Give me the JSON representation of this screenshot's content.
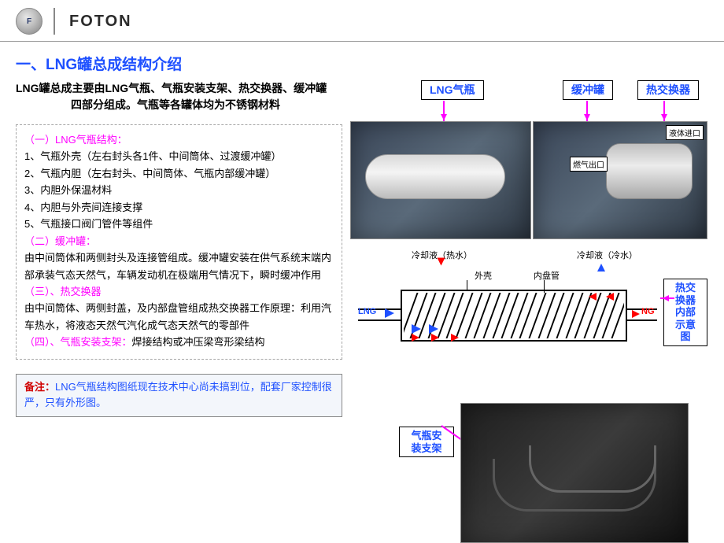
{
  "header": {
    "logo_glyph": "F",
    "brand": "FOTON"
  },
  "title": "一、LNG罐总成结构介绍",
  "intro": {
    "line1": "LNG罐总成主要由LNG气瓶、气瓶安装支架、热交换器、缓冲罐",
    "line2": "四部分组成。气瓶等各罐体均为不锈钢材料"
  },
  "sections": {
    "s1_head": "（一）LNG气瓶结构：",
    "s1_l1": "1、气瓶外壳（左右封头各1件、中间筒体、过渡缓冲罐）",
    "s1_l2": "2、气瓶内胆（左右封头、中间筒体、气瓶内部缓冲罐）",
    "s1_l3": "3、内胆外保温材料",
    "s1_l4": "4、内胆与外壳间连接支撑",
    "s1_l5": "5、气瓶接口阀门管件等组件",
    "s2_head": "（二）缓冲罐：",
    "s2_body": "由中间筒体和两侧封头及连接管组成。缓冲罐安装在供气系统末端内部承装气态天然气，车辆发动机在极端用气情况下，瞬时缓冲作用",
    "s3_head": "（三）、热交换器",
    "s3_body": "由中间筒体、两侧封盖，及内部盘管组成热交换器工作原理：利用汽车热水，将液态天然气汽化成气态天然气的零部件",
    "s4_head": "（四）、气瓶安装支架：",
    "s4_body": "焊接结构或冲压梁弯形梁结构"
  },
  "note": {
    "label": "备注：",
    "body": "LNG气瓶结构图纸现在技术中心尚未搞到位，配套厂家控制很严，只有外形图。"
  },
  "labels": {
    "l1": "LNG气瓶",
    "l2": "缓冲罐",
    "l3": "热交换器",
    "l4": "热交换器内部示意图",
    "l5": "气瓶安装支架"
  },
  "diagram": {
    "coolant_hot": "冷却液（热水）",
    "coolant_cold": "冷却液（冷水）",
    "outer_shell": "外壳",
    "inner_coil": "内盘管",
    "inlet": "LNG",
    "outlet": "NG",
    "liquid_inlet": "液体进口",
    "gas_outlet": "燃气出口",
    "coil_count": 24,
    "colors": {
      "hot": "#ff0000",
      "cold": "#1e50ff",
      "line": "#000000",
      "accent": "#ff00ff"
    }
  }
}
